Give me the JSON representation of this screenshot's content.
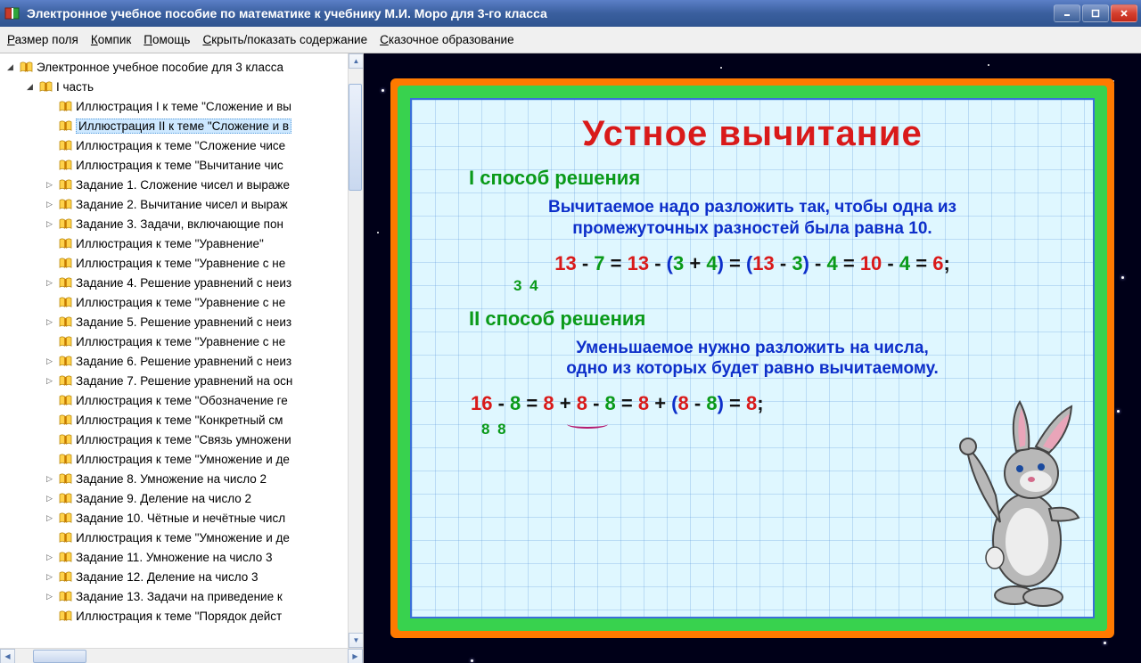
{
  "titlebar": {
    "text": "Электронное учебное пособие по математике к учебнику М.И. Моро для 3-го класса"
  },
  "menu": {
    "items": [
      {
        "pre": "Р",
        "rest": "азмер поля"
      },
      {
        "pre": "К",
        "rest": "омпик"
      },
      {
        "pre": "П",
        "rest": "омощь"
      },
      {
        "pre": "С",
        "rest": "крыть/показать содержание"
      },
      {
        "pre": "С",
        "rest": "казочное образование"
      }
    ]
  },
  "tree": {
    "items": [
      {
        "indent": 0,
        "exp": "▾",
        "label": "Электронное учебное пособие для 3 класса"
      },
      {
        "indent": 1,
        "exp": "▾",
        "label": "I часть"
      },
      {
        "indent": 2,
        "exp": "",
        "label": "Иллюстрация I к теме \"Сложение и вы"
      },
      {
        "indent": 2,
        "exp": "",
        "label": "Иллюстрация II к теме \"Сложение и в",
        "selected": true
      },
      {
        "indent": 2,
        "exp": "",
        "label": "Иллюстрация к теме \"Сложение чисе"
      },
      {
        "indent": 2,
        "exp": "",
        "label": "Иллюстрация к теме \"Вычитание чис"
      },
      {
        "indent": 2,
        "exp": "▸",
        "label": "Задание 1. Сложение чисел и выраже"
      },
      {
        "indent": 2,
        "exp": "▸",
        "label": "Задание 2. Вычитание чисел и выраж"
      },
      {
        "indent": 2,
        "exp": "▸",
        "label": "Задание 3. Задачи, включающие пон"
      },
      {
        "indent": 2,
        "exp": "",
        "label": "Иллюстрация к теме \"Уравнение\""
      },
      {
        "indent": 2,
        "exp": "",
        "label": "Иллюстрация к теме \"Уравнение с не"
      },
      {
        "indent": 2,
        "exp": "▸",
        "label": "Задание 4. Решение уравнений с неиз"
      },
      {
        "indent": 2,
        "exp": "",
        "label": "Иллюстрация к теме \"Уравнение с не"
      },
      {
        "indent": 2,
        "exp": "▸",
        "label": "Задание 5. Решение уравнений с неиз"
      },
      {
        "indent": 2,
        "exp": "",
        "label": "Иллюстрация к теме \"Уравнение с не"
      },
      {
        "indent": 2,
        "exp": "▸",
        "label": "Задание 6. Решение уравнений с неиз"
      },
      {
        "indent": 2,
        "exp": "▸",
        "label": "Задание 7. Решение уравнений на осн"
      },
      {
        "indent": 2,
        "exp": "",
        "label": "Иллюстрация к теме \"Обозначение ге"
      },
      {
        "indent": 2,
        "exp": "",
        "label": "Иллюстрация к теме \"Конкретный см"
      },
      {
        "indent": 2,
        "exp": "",
        "label": "Иллюстрация к теме \"Связь умножени"
      },
      {
        "indent": 2,
        "exp": "",
        "label": "Иллюстрация к теме \"Умножение и де"
      },
      {
        "indent": 2,
        "exp": "▸",
        "label": "Задание 8. Умножение на число 2"
      },
      {
        "indent": 2,
        "exp": "▸",
        "label": "Задание 9. Деление на число 2"
      },
      {
        "indent": 2,
        "exp": "▸",
        "label": "Задание 10. Чётные и нечётные числ"
      },
      {
        "indent": 2,
        "exp": "",
        "label": "Иллюстрация к теме \"Умножение и де"
      },
      {
        "indent": 2,
        "exp": "▸",
        "label": "Задание 11. Умножение на число 3"
      },
      {
        "indent": 2,
        "exp": "▸",
        "label": "Задание 12. Деление на число 3"
      },
      {
        "indent": 2,
        "exp": "▸",
        "label": "Задание 13. Задачи на приведение к"
      },
      {
        "indent": 2,
        "exp": "",
        "label": "Иллюстрация к теме \"Порядок дейст"
      }
    ]
  },
  "slide": {
    "title": "Устное вычитание",
    "method1": "I способ решения",
    "desc1a": "Вычитаемое надо разложить так, чтобы одна из",
    "desc1b": "промежуточных разностей была равна 10.",
    "eq1_parts": {
      "a": "13",
      "b": "7",
      "c": "13",
      "d": "3",
      "e": "4",
      "f": "13",
      "g": "3",
      "h": "4",
      "i": "10",
      "j": "4",
      "k": "6"
    },
    "sub1": "3  4",
    "method2": "II способ решения",
    "desc2a": "Уменьшаемое нужно разложить на числа,",
    "desc2b": "одно из которых будет равно вычитаемому.",
    "eq2_parts": {
      "a": "16",
      "b": "8",
      "c": "8",
      "d": "8",
      "e": "8",
      "f": "8",
      "g": "8",
      "h": "8",
      "i": "8"
    },
    "sub2": "8  8"
  },
  "colors": {
    "title_red": "#d91a1a",
    "green": "#0a9a19",
    "blue": "#0d2fca",
    "frame_orange": "#ff7a00",
    "frame_green": "#38d24e",
    "grid_bg": "#dff7ff",
    "titlebar_grad_top": "#5b7fc7",
    "titlebar_grad_bot": "#2f5490"
  }
}
